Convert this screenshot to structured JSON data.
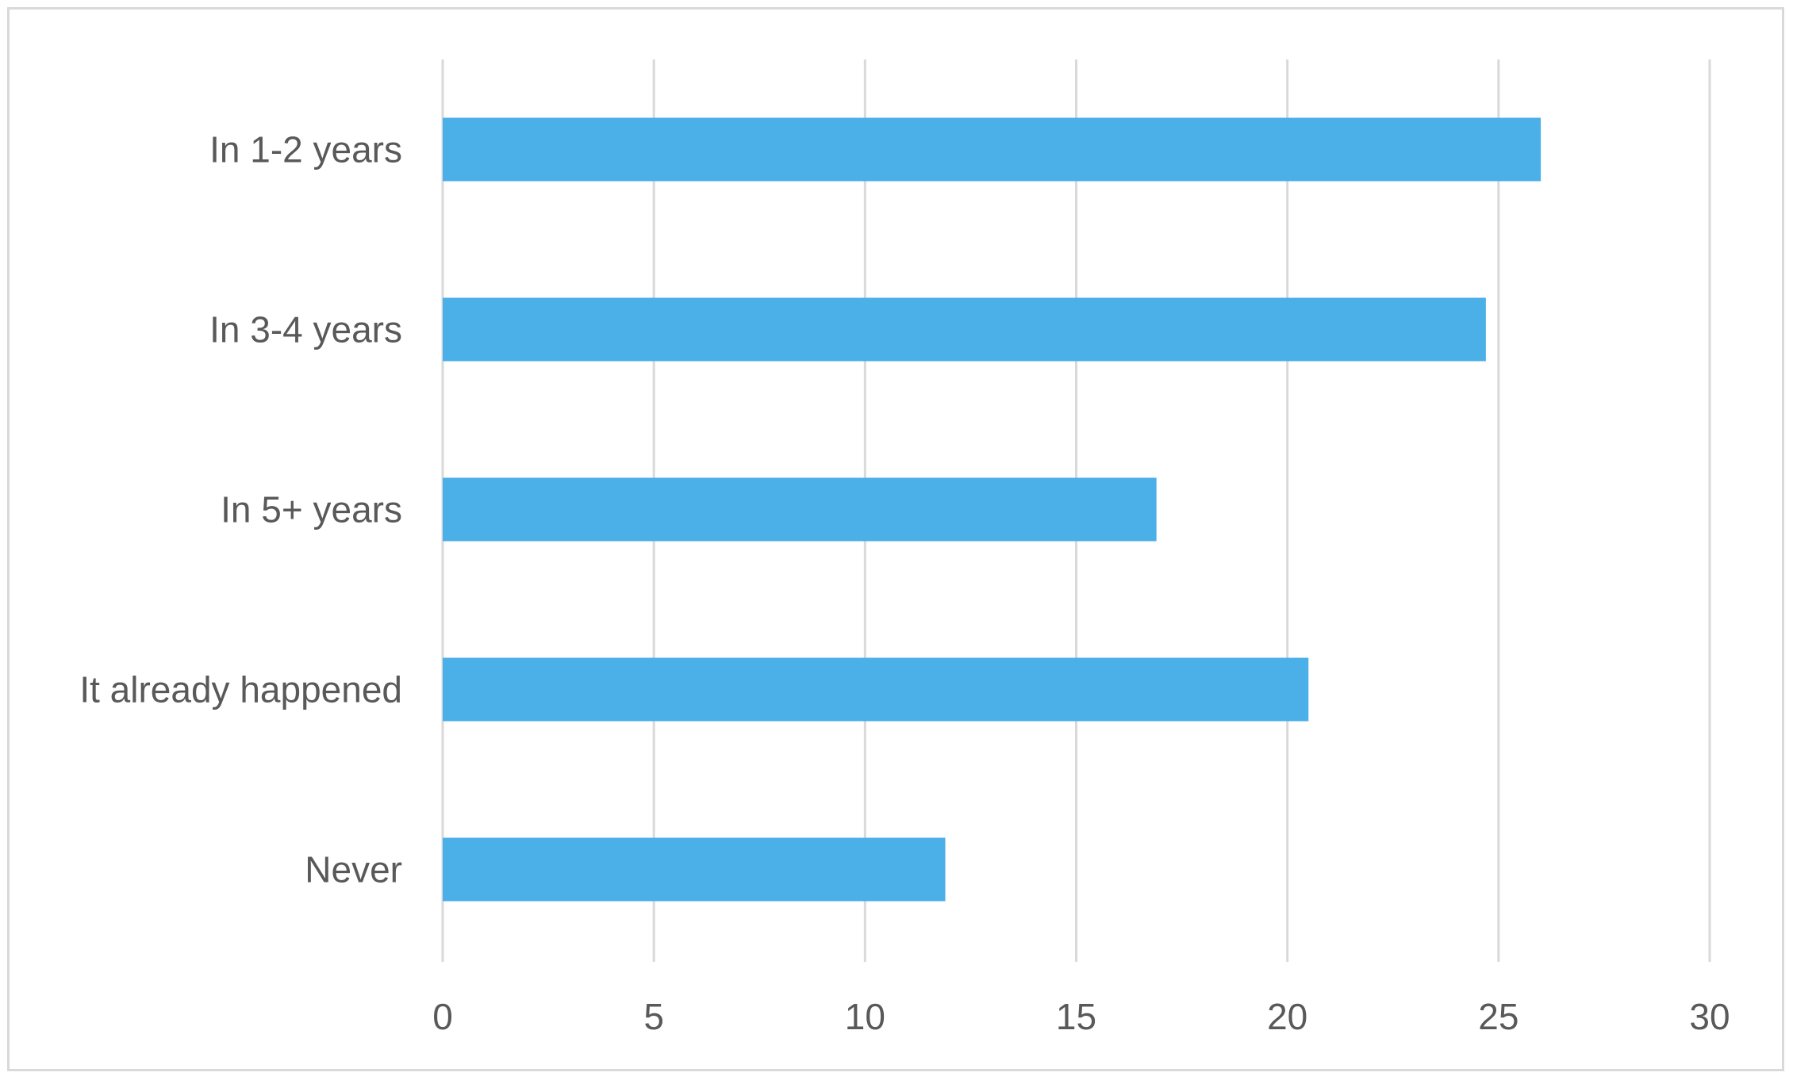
{
  "chart_data": {
    "type": "bar",
    "orientation": "horizontal",
    "categories": [
      "In 1-2 years",
      "In 3-4 years",
      "In 5+ years",
      "It already happened",
      "Never"
    ],
    "values": [
      26,
      24.7,
      16.9,
      20.5,
      11.9
    ],
    "title": "",
    "xlabel": "",
    "ylabel": "",
    "xlim": [
      0,
      30
    ],
    "xticks": [
      "0",
      "5",
      "10",
      "15",
      "20",
      "25",
      "30"
    ],
    "grid": "vertical",
    "legend": "none",
    "bar_color": "#4BAFE8",
    "grid_color": "#d9d9d9",
    "text_color": "#595959",
    "border_color": "#d9d9d9"
  }
}
